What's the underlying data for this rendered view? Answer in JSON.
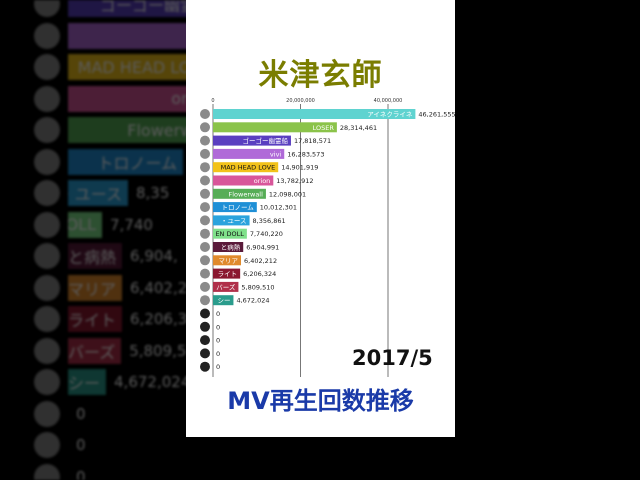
{
  "title": "米津玄師",
  "subtitle": "MV再生回数推移",
  "date_label": "2017/5",
  "chart_data": {
    "type": "bar",
    "title": "米津玄師",
    "x_ticks": [
      0,
      20000000,
      40000000
    ],
    "x_tick_labels": [
      "0",
      "20,000,000",
      "40,000,000"
    ],
    "xlim": [
      0,
      48000000
    ],
    "grid": true,
    "categories": [
      "アイネクライネ",
      "LOSER",
      "ゴーゴー幽霊船",
      "vivi",
      "MAD HEAD LOVE",
      "orion",
      "Flowerwall",
      "トロノーム",
      "・ユース",
      "EN DOLL",
      "と病熱",
      "マリア",
      "ライト",
      "バーズ",
      "シー",
      "",
      "",
      "",
      "",
      ""
    ],
    "values": [
      46261555,
      28314461,
      17818571,
      16283573,
      14901919,
      13782912,
      12098001,
      10012301,
      8356861,
      7740220,
      6904991,
      6402212,
      6206324,
      5809510,
      4672024,
      0,
      0,
      0,
      0,
      0
    ],
    "value_labels": [
      "46,261,555",
      "28,314,461",
      "17,818,571",
      "16,283,573",
      "14,901,919",
      "13,782,912",
      "12,098,001",
      "10,012,301",
      "8,356,861",
      "7,740,220",
      "6,904,991",
      "6,402,212",
      "6,206,324",
      "5,809,510",
      "4,672,024",
      "0",
      "0",
      "0",
      "0",
      "0"
    ],
    "colors": [
      "#5fd3d0",
      "#8bc34a",
      "#5a3fc0",
      "#b06ad8",
      "#f2c21a",
      "#d8569a",
      "#57ad57",
      "#1f8fd6",
      "#2aa3dd",
      "#7fe08a",
      "#5a1a3a",
      "#e08a2c",
      "#8a1830",
      "#b0304a",
      "#2a9c8c",
      "#ffffff",
      "#ffffff",
      "#ffffff",
      "#ffffff",
      "#ffffff"
    ],
    "label_colors": [
      "#ffffff",
      "#ffffff",
      "#ffffff",
      "#ffffff",
      "#111111",
      "#ffffff",
      "#ffffff",
      "#ffffff",
      "#ffffff",
      "#111111",
      "#ffffff",
      "#ffffff",
      "#ffffff",
      "#ffffff",
      "#ffffff",
      "#ffffff",
      "#ffffff",
      "#ffffff",
      "#ffffff",
      "#ffffff"
    ]
  },
  "background": {
    "rows": [
      {
        "label": "ゴーゴー幽霊船",
        "value": "",
        "color": "#5a3fc0"
      },
      {
        "label": "",
        "value": "",
        "color": "#b06ad8"
      },
      {
        "label": "MAD HEAD LOVE",
        "value": "",
        "color": "#f2c21a"
      },
      {
        "label": "orion",
        "value": "",
        "color": "#d8569a"
      },
      {
        "label": "Flowerwall",
        "value": "",
        "color": "#57ad57"
      },
      {
        "label": "トロノーム",
        "value": "10",
        "color": "#1f8fd6"
      },
      {
        "label": "・ユース",
        "value": "8,35",
        "color": "#2aa3dd"
      },
      {
        "label": "EN DOLL",
        "value": "7,740",
        "color": "#7fe08a"
      },
      {
        "label": "と病熱",
        "value": "6,904,",
        "color": "#5a1a3a"
      },
      {
        "label": "マリア",
        "value": "6,402,2",
        "color": "#e08a2c"
      },
      {
        "label": "ライト",
        "value": "6,206,3",
        "color": "#8a1830"
      },
      {
        "label": "バーズ",
        "value": "5,809,5",
        "color": "#b0304a"
      },
      {
        "label": "シー",
        "value": "4,672,024",
        "color": "#2a9c8c"
      },
      {
        "label": "",
        "value": "0",
        "color": "#000000"
      },
      {
        "label": "",
        "value": "0",
        "color": "#000000"
      },
      {
        "label": "",
        "value": "0",
        "color": "#000000"
      }
    ]
  }
}
